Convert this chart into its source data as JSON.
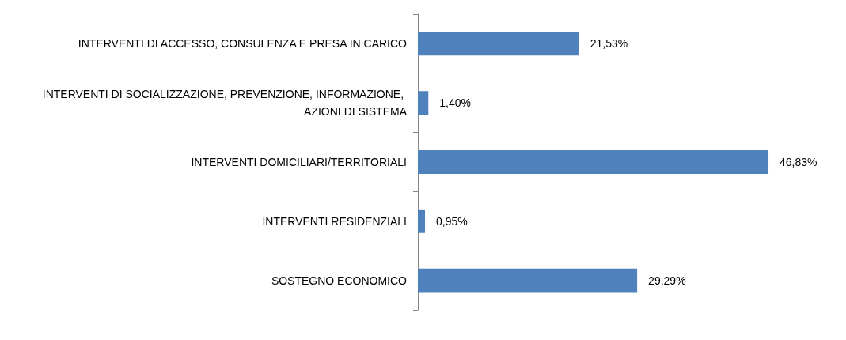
{
  "chart_data": {
    "type": "bar",
    "orientation": "horizontal",
    "categories": [
      "INTERVENTI DI ACCESSO, CONSULENZA E PRESA IN CARICO",
      "INTERVENTI DI SOCIALIZZAZIONE, PREVENZIONE, INFORMAZIONE, AZIONI DI SISTEMA",
      "INTERVENTI DOMICILIARI/TERRITORIALI",
      "INTERVENTI RESIDENZIALI",
      "SOSTEGNO ECONOMICO"
    ],
    "values": [
      21.53,
      1.4,
      46.83,
      0.95,
      29.29
    ],
    "value_labels": [
      "21,53%",
      "1,40%",
      "46,83%",
      "0,95%",
      "29,29%"
    ],
    "color": "#4f81bd"
  }
}
